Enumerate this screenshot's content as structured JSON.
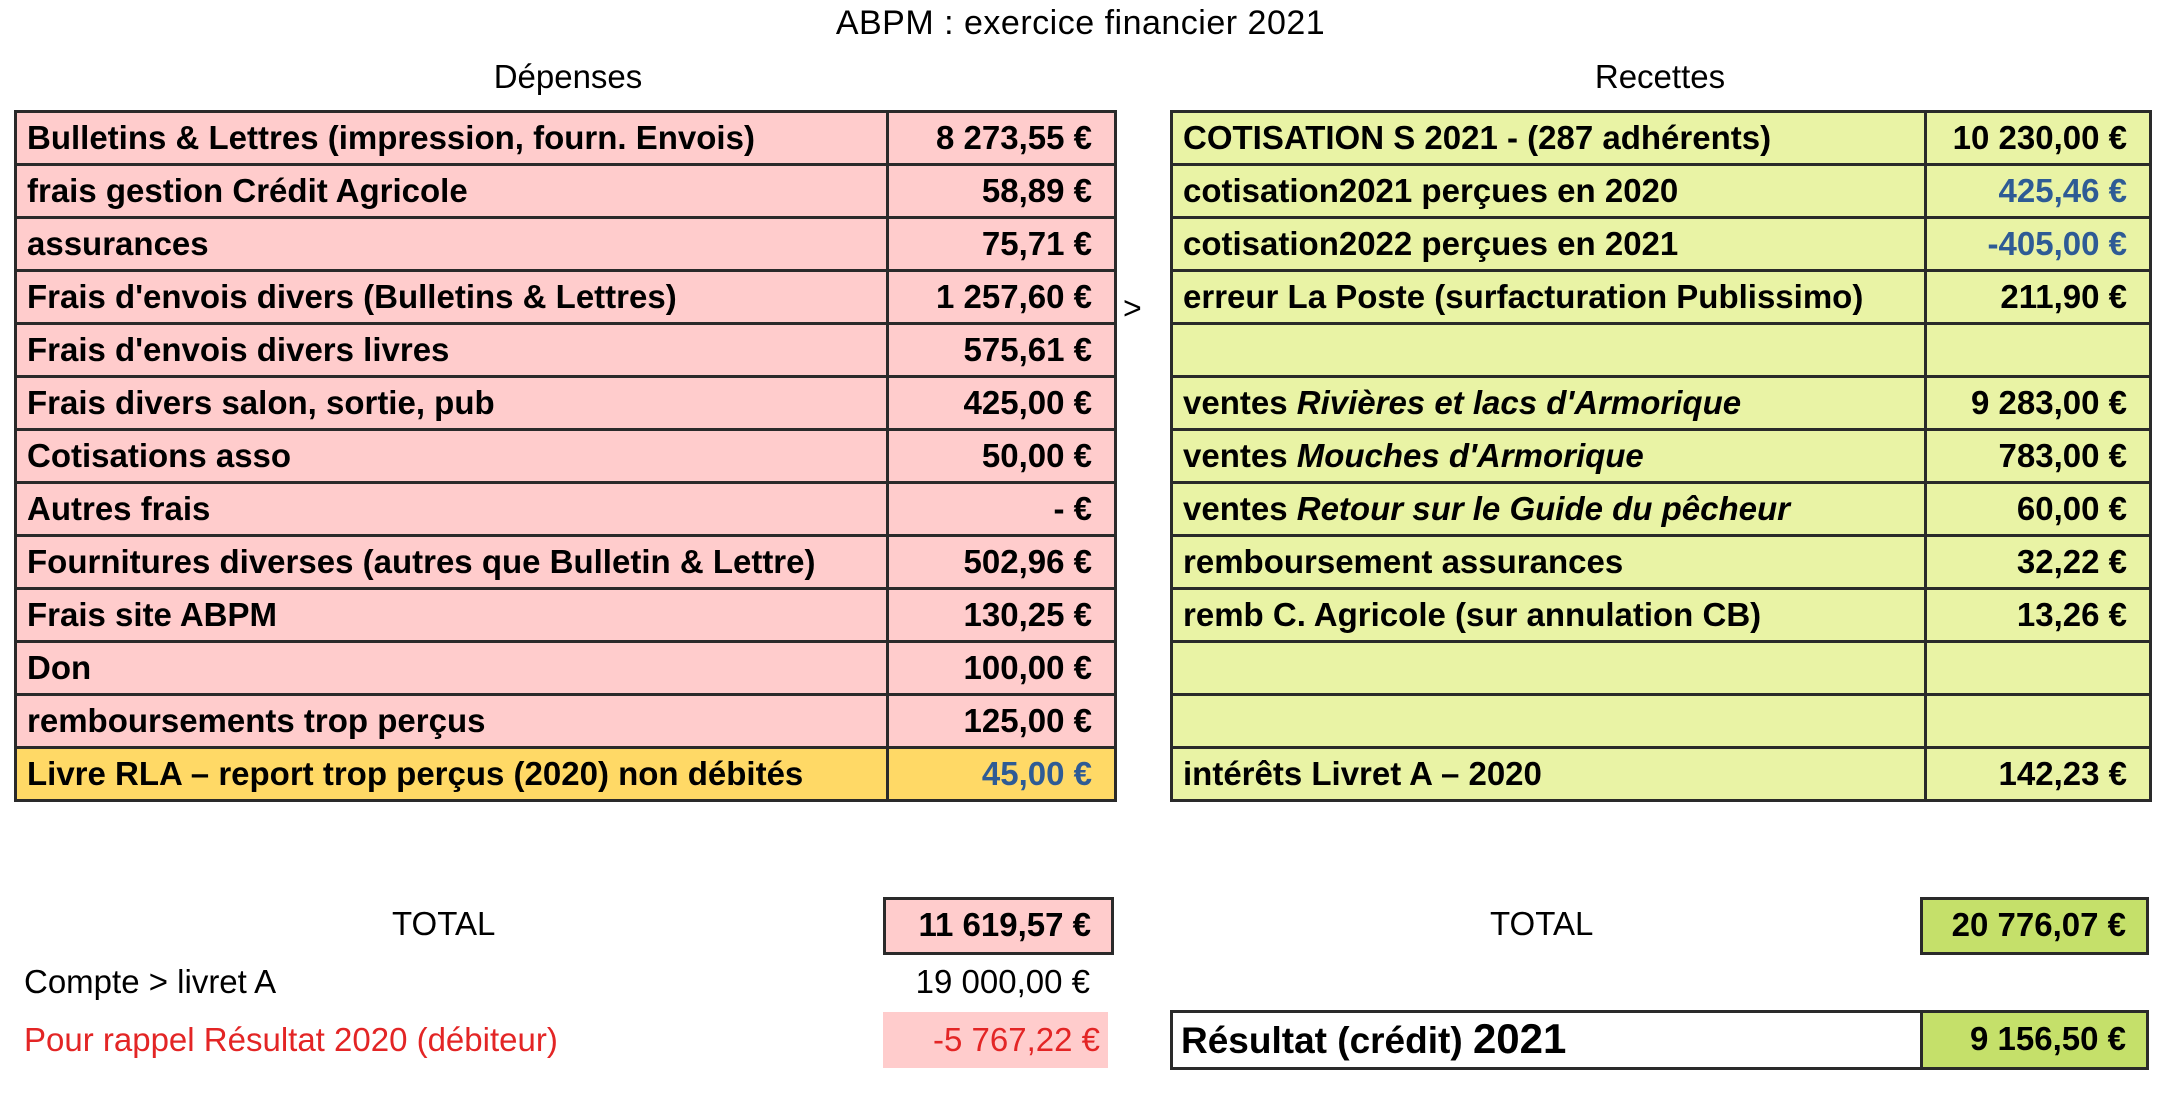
{
  "title": "ABPM : exercice financier 2021",
  "depenses": {
    "heading": "Dépenses",
    "rows": [
      {
        "label": "Bulletins & Lettres (impression, fourn. Envois)",
        "amount": "8 273,55 €"
      },
      {
        "label": "frais gestion Crédit Agricole",
        "amount": "58,89 €"
      },
      {
        "label": "assurances",
        "amount": "75,71 €"
      },
      {
        "label": "Frais d'envois divers (Bulletins & Lettres)",
        "amount": "1 257,60 €"
      },
      {
        "label": "Frais d'envois divers livres",
        "amount": "575,61 €"
      },
      {
        "label": "Frais divers salon, sortie, pub",
        "amount": "425,00 €"
      },
      {
        "label": "Cotisations asso",
        "amount": "50,00 €"
      },
      {
        "label": "Autres frais",
        "amount": "- €"
      },
      {
        "label": "Fournitures diverses (autres que Bulletin & Lettre)",
        "amount": "502,96 €"
      },
      {
        "label": "Frais site ABPM",
        "amount": "130,25 €"
      },
      {
        "label": "Don",
        "amount": "100,00 €"
      },
      {
        "label": "remboursements trop perçus",
        "amount": "125,00 €"
      },
      {
        "label": "Livre RLA – report trop perçus (2020) non débités",
        "amount": "45,00 €"
      }
    ],
    "total_label": "TOTAL",
    "total": "11 619,57 €",
    "transfer_label": "Compte > livret A",
    "transfer_amount": "19 000,00 €",
    "rappel_label": "Pour rappel Résultat 2020 (débiteur)",
    "rappel_amount": "-5 767,22 €"
  },
  "arrow": ">",
  "recettes": {
    "heading": "Recettes",
    "rows": [
      {
        "label": "COTISATION S 2021 - (287 adhérents)",
        "amount": "10 230,00 €"
      },
      {
        "label": "cotisation2021 perçues en 2020",
        "amount": "425,46 €"
      },
      {
        "label": "cotisation2022 perçues en 2021",
        "amount": "-405,00 €"
      },
      {
        "label": "erreur La Poste (surfacturation Publissimo)",
        "amount": "211,90 €"
      },
      {
        "label": "",
        "amount": ""
      },
      {
        "prefix": "ventes ",
        "title": "Rivières et lacs d'Armorique",
        "amount": "9 283,00 €"
      },
      {
        "prefix": "ventes ",
        "title": "Mouches d'Armorique",
        "amount": "783,00 €"
      },
      {
        "prefix": "ventes ",
        "title": "Retour sur le Guide du pêcheur",
        "amount": "60,00 €"
      },
      {
        "label": "remboursement assurances",
        "amount": "32,22 €"
      },
      {
        "label": "remb C. Agricole (sur annulation CB)",
        "amount": "13,26 €"
      },
      {
        "label": "",
        "amount": ""
      },
      {
        "label": "",
        "amount": ""
      },
      {
        "label": "intérêts Livret A – 2020",
        "amount": "142,23 €"
      }
    ],
    "total_label": "TOTAL",
    "total": "20 776,07 €",
    "resultat_label": "Résultat (crédit) ",
    "resultat_year": "2021",
    "resultat_amount": "9 156,50 €"
  }
}
